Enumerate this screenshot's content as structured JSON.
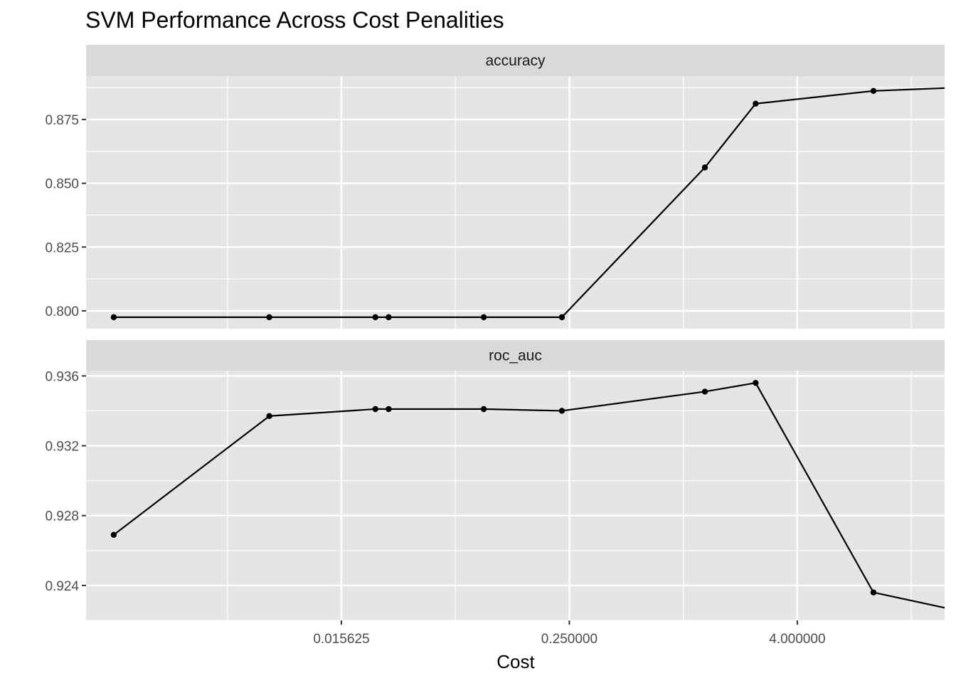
{
  "chart_data": {
    "type": "line",
    "title": "SVM Performance Across Cost Penalities",
    "xlabel": "Cost",
    "ylabel": "",
    "x_scale": "log2",
    "xlim": [
      0.0007,
      24
    ],
    "x_ticks": [
      {
        "value": 0.015625,
        "label": "0.015625"
      },
      {
        "value": 0.25,
        "label": "0.250000"
      },
      {
        "value": 4,
        "label": "4.000000"
      }
    ],
    "grid": true,
    "legend": "none",
    "x": [
      0.00098,
      0.0065,
      0.02362,
      0.02776,
      0.0883,
      0.2283,
      1.3,
      2.41,
      10.1,
      30.0
    ],
    "panels": [
      {
        "name": "accuracy",
        "ylim": [
          0.793,
          0.892
        ],
        "y_ticks": [
          {
            "value": 0.8,
            "label": "0.800"
          },
          {
            "value": 0.825,
            "label": "0.825"
          },
          {
            "value": 0.85,
            "label": "0.850"
          },
          {
            "value": 0.875,
            "label": "0.875"
          }
        ],
        "values": [
          0.7975,
          0.7975,
          0.7975,
          0.7975,
          0.7975,
          0.7975,
          0.8562,
          0.8812,
          0.8862,
          0.8876
        ]
      },
      {
        "name": "roc_auc",
        "ylim": [
          0.922,
          0.9363
        ],
        "y_ticks": [
          {
            "value": 0.924,
            "label": "0.924"
          },
          {
            "value": 0.928,
            "label": "0.928"
          },
          {
            "value": 0.932,
            "label": "0.932"
          },
          {
            "value": 0.936,
            "label": "0.936"
          }
        ],
        "values": [
          0.9269,
          0.9337,
          0.9341,
          0.9341,
          0.9341,
          0.934,
          0.9351,
          0.9356,
          0.9236,
          0.9225
        ]
      }
    ],
    "colors": {
      "panel_bg": "#e5e5e5",
      "strip_bg": "#d9d9d9",
      "grid": "#ffffff",
      "line": "#000000"
    }
  }
}
